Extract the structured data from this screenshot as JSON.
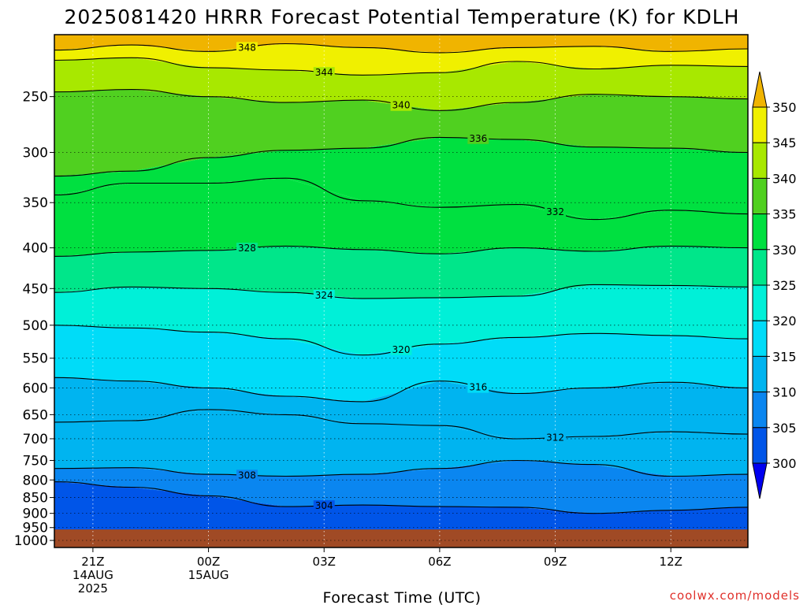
{
  "chart_data": {
    "type": "contour",
    "title": "2025081420 HRRR Forecast Potential Temperature (K) for KDLH",
    "xlabel": "Forecast Time (UTC)",
    "ylabel": "",
    "credit": "coolwx.com/models",
    "y_scale": "pressure",
    "y_ticks": [
      250,
      300,
      350,
      400,
      450,
      500,
      550,
      600,
      650,
      700,
      750,
      800,
      850,
      900,
      950,
      1000
    ],
    "x_ticks": [
      {
        "label": "21Z",
        "line2": "14AUG",
        "line3": "2025",
        "hours": 0
      },
      {
        "label": "00Z",
        "line2": "15AUG",
        "line3": "",
        "hours": 3
      },
      {
        "label": "03Z",
        "line2": "",
        "line3": "",
        "hours": 6
      },
      {
        "label": "06Z",
        "line2": "",
        "line3": "",
        "hours": 9
      },
      {
        "label": "09Z",
        "line2": "",
        "line3": "",
        "hours": 12
      },
      {
        "label": "12Z",
        "line2": "",
        "line3": "",
        "hours": 15
      }
    ],
    "x_range_hours": [
      -1,
      17
    ],
    "y_range_hpa": [
      200,
      1030
    ],
    "grid": true,
    "surface_pressure_hpa": 957,
    "colorbar": {
      "levels": [
        300,
        305,
        310,
        315,
        320,
        325,
        330,
        335,
        340,
        345,
        350
      ],
      "colors": [
        "#0000f0",
        "#0055e8",
        "#0a86f0",
        "#00b4f0",
        "#00dcf8",
        "#00f0d8",
        "#00e68a",
        "#00e040",
        "#50d020",
        "#a8e800",
        "#f0f000",
        "#f0b400"
      ]
    },
    "contours": [
      {
        "value": 348,
        "label": "348",
        "points": [
          [
            -1,
            212
          ],
          [
            1,
            208
          ],
          [
            3,
            213
          ],
          [
            5,
            207
          ],
          [
            7,
            210
          ],
          [
            9,
            214
          ],
          [
            11,
            210
          ],
          [
            13,
            209
          ],
          [
            15,
            213
          ],
          [
            17,
            211
          ]
        ]
      },
      {
        "value": 344,
        "label": "344",
        "points": [
          [
            -1,
            220
          ],
          [
            1,
            218
          ],
          [
            3,
            226
          ],
          [
            5,
            228
          ],
          [
            7,
            232
          ],
          [
            9,
            230
          ],
          [
            11,
            221
          ],
          [
            13,
            227
          ],
          [
            15,
            224
          ],
          [
            17,
            225
          ]
        ]
      },
      {
        "value": 340,
        "label": "340",
        "points": [
          [
            -1,
            246
          ],
          [
            1,
            244
          ],
          [
            3,
            250
          ],
          [
            5,
            255
          ],
          [
            7,
            253
          ],
          [
            9,
            262
          ],
          [
            11,
            255
          ],
          [
            13,
            248
          ],
          [
            15,
            250
          ],
          [
            17,
            252
          ]
        ]
      },
      {
        "value": 336,
        "label": "336",
        "points": [
          [
            -1,
            323
          ],
          [
            1,
            318
          ],
          [
            3,
            305
          ],
          [
            5,
            298
          ],
          [
            7,
            296
          ],
          [
            9,
            286
          ],
          [
            11,
            288
          ],
          [
            13,
            295
          ],
          [
            15,
            296
          ],
          [
            17,
            300
          ]
        ]
      },
      {
        "value": 332,
        "label": "332",
        "points": [
          [
            -1,
            342
          ],
          [
            1,
            330
          ],
          [
            3,
            330
          ],
          [
            5,
            325
          ],
          [
            7,
            348
          ],
          [
            9,
            355
          ],
          [
            11,
            352
          ],
          [
            13,
            368
          ],
          [
            15,
            358
          ],
          [
            17,
            362
          ]
        ]
      },
      {
        "value": 328,
        "label": "328",
        "points": [
          [
            -1,
            410
          ],
          [
            1,
            405
          ],
          [
            3,
            403
          ],
          [
            5,
            398
          ],
          [
            7,
            402
          ],
          [
            9,
            407
          ],
          [
            11,
            400
          ],
          [
            13,
            404
          ],
          [
            15,
            398
          ],
          [
            17,
            400
          ]
        ]
      },
      {
        "value": 324,
        "label": "324",
        "points": [
          [
            -1,
            455
          ],
          [
            1,
            448
          ],
          [
            3,
            450
          ],
          [
            5,
            455
          ],
          [
            7,
            463
          ],
          [
            9,
            462
          ],
          [
            11,
            460
          ],
          [
            13,
            445
          ],
          [
            15,
            446
          ],
          [
            17,
            448
          ]
        ]
      },
      {
        "value": 320,
        "label": "320",
        "points": [
          [
            -1,
            500
          ],
          [
            1,
            504
          ],
          [
            3,
            510
          ],
          [
            5,
            520
          ],
          [
            7,
            545
          ],
          [
            9,
            528
          ],
          [
            11,
            518
          ],
          [
            13,
            512
          ],
          [
            15,
            515
          ],
          [
            17,
            520
          ]
        ]
      },
      {
        "value": 316,
        "label": "316",
        "points": [
          [
            -1,
            582
          ],
          [
            1,
            588
          ],
          [
            3,
            600
          ],
          [
            5,
            615
          ],
          [
            7,
            625
          ],
          [
            9,
            588
          ],
          [
            11,
            610
          ],
          [
            13,
            600
          ],
          [
            15,
            590
          ],
          [
            17,
            600
          ]
        ]
      },
      {
        "value": 312,
        "label": "312",
        "points": [
          [
            -1,
            665
          ],
          [
            1,
            662
          ],
          [
            3,
            640
          ],
          [
            5,
            650
          ],
          [
            7,
            668
          ],
          [
            9,
            672
          ],
          [
            11,
            700
          ],
          [
            13,
            695
          ],
          [
            15,
            685
          ],
          [
            17,
            690
          ]
        ]
      },
      {
        "value": 308,
        "label": "308",
        "points": [
          [
            -1,
            770
          ],
          [
            1,
            768
          ],
          [
            3,
            785
          ],
          [
            5,
            790
          ],
          [
            7,
            785
          ],
          [
            9,
            770
          ],
          [
            11,
            750
          ],
          [
            13,
            760
          ],
          [
            15,
            790
          ],
          [
            17,
            785
          ]
        ]
      },
      {
        "value": 304,
        "label": "304",
        "points": [
          [
            -1,
            805
          ],
          [
            1,
            820
          ],
          [
            3,
            845
          ],
          [
            5,
            878
          ],
          [
            7,
            873
          ],
          [
            9,
            878
          ],
          [
            11,
            880
          ],
          [
            13,
            900
          ],
          [
            15,
            890
          ],
          [
            17,
            880
          ]
        ]
      }
    ]
  }
}
